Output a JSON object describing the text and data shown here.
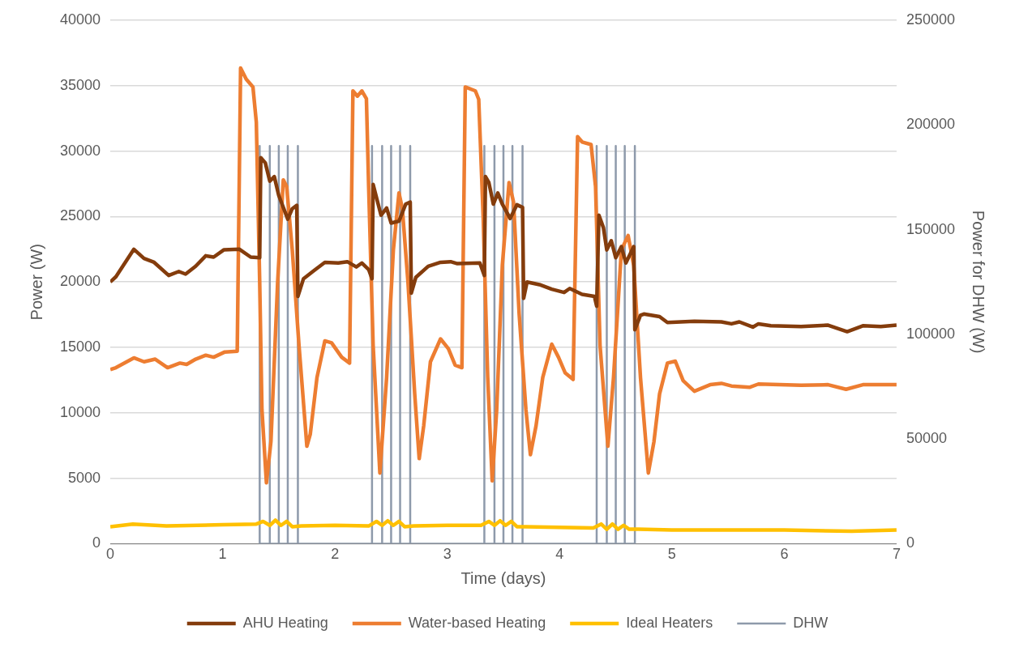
{
  "chart_data": {
    "type": "line",
    "xlabel": "Time (days)",
    "ylabel": "Power (W)",
    "y2label": "Power for DHW (W)",
    "xlim": [
      0,
      7
    ],
    "xticks": [
      0,
      1,
      2,
      3,
      4,
      5,
      6,
      7
    ],
    "ylim": [
      0,
      40000
    ],
    "yticks": [
      0,
      5000,
      10000,
      15000,
      20000,
      25000,
      30000,
      35000,
      40000
    ],
    "y2lim": [
      0,
      250000
    ],
    "y2ticks": [
      0,
      50000,
      100000,
      150000,
      200000,
      250000
    ],
    "grid": "y",
    "legend": "bottom",
    "series": [
      {
        "name": "AHU Heating",
        "color": "#843c0c",
        "x": [
          0,
          0.05,
          0.21,
          0.3,
          0.39,
          0.52,
          0.61,
          0.67,
          0.76,
          0.85,
          0.92,
          1.01,
          1.15,
          1.25,
          1.33,
          1.34,
          1.38,
          1.42,
          1.46,
          1.5,
          1.58,
          1.62,
          1.66,
          1.67,
          1.72,
          1.81,
          1.91,
          2.03,
          2.11,
          2.19,
          2.24,
          2.3,
          2.33,
          2.34,
          2.41,
          2.46,
          2.5,
          2.57,
          2.63,
          2.67,
          2.68,
          2.72,
          2.83,
          2.94,
          3.03,
          3.09,
          3.29,
          3.33,
          3.34,
          3.37,
          3.41,
          3.45,
          3.49,
          3.56,
          3.62,
          3.67,
          3.68,
          3.71,
          3.82,
          3.93,
          4.04,
          4.09,
          4.2,
          4.31,
          4.33,
          4.35,
          4.39,
          4.42,
          4.46,
          4.5,
          4.55,
          4.59,
          4.66,
          4.67,
          4.72,
          4.75,
          4.89,
          4.96,
          5.2,
          5.44,
          5.53,
          5.6,
          5.72,
          5.77,
          5.88,
          6.15,
          6.39,
          6.56,
          6.7,
          6.86,
          7
        ],
        "values": [
          20000,
          20400,
          22500,
          21800,
          21500,
          20500,
          20800,
          20600,
          21200,
          22000,
          21900,
          22450,
          22500,
          21900,
          21850,
          29500,
          29100,
          27700,
          28050,
          26600,
          24800,
          25600,
          25850,
          18900,
          20250,
          20850,
          21500,
          21450,
          21550,
          21150,
          21450,
          20950,
          20250,
          27450,
          25100,
          25650,
          24500,
          24650,
          25950,
          26100,
          19150,
          20350,
          21200,
          21500,
          21550,
          21400,
          21450,
          20500,
          28050,
          27600,
          25950,
          26800,
          25950,
          24850,
          25900,
          25700,
          18750,
          20000,
          19800,
          19450,
          19200,
          19500,
          19050,
          18900,
          18150,
          25100,
          24150,
          22450,
          23150,
          21850,
          22700,
          21450,
          22700,
          16350,
          17450,
          17550,
          17350,
          16900,
          17000,
          16950,
          16800,
          16950,
          16550,
          16800,
          16650,
          16600,
          16700,
          16200,
          16650,
          16600,
          16700
        ]
      },
      {
        "name": "Water-based Heating",
        "color": "#ed7d31",
        "x": [
          0,
          0.05,
          0.21,
          0.3,
          0.4,
          0.51,
          0.62,
          0.68,
          0.76,
          0.85,
          0.92,
          1.02,
          1.13,
          1.16,
          1.21,
          1.27,
          1.3,
          1.33,
          1.35,
          1.39,
          1.43,
          1.49,
          1.54,
          1.57,
          1.62,
          1.68,
          1.75,
          1.78,
          1.84,
          1.91,
          1.97,
          2.06,
          2.13,
          2.16,
          2.2,
          2.24,
          2.28,
          2.3,
          2.34,
          2.4,
          2.46,
          2.52,
          2.57,
          2.6,
          2.65,
          2.71,
          2.75,
          2.79,
          2.85,
          2.94,
          3.01,
          3.07,
          3.13,
          3.16,
          3.25,
          3.28,
          3.32,
          3.36,
          3.4,
          3.44,
          3.49,
          3.55,
          3.59,
          3.64,
          3.7,
          3.74,
          3.79,
          3.85,
          3.93,
          3.99,
          4.05,
          4.12,
          4.16,
          4.2,
          4.28,
          4.32,
          4.36,
          4.43,
          4.48,
          4.55,
          4.61,
          4.66,
          4.72,
          4.79,
          4.84,
          4.89,
          4.96,
          5.03,
          5.1,
          5.2,
          5.34,
          5.44,
          5.53,
          5.69,
          5.77,
          6.15,
          6.39,
          6.55,
          6.7,
          7
        ],
        "values": [
          13300,
          13450,
          14200,
          13900,
          14100,
          13450,
          13800,
          13700,
          14100,
          14400,
          14250,
          14650,
          14700,
          36350,
          35500,
          34900,
          32200,
          20000,
          10250,
          4650,
          7800,
          20000,
          27800,
          27300,
          22450,
          15150,
          7450,
          8350,
          12700,
          15500,
          15350,
          14250,
          13800,
          34600,
          34200,
          34600,
          34000,
          27300,
          15150,
          5400,
          12700,
          22450,
          26800,
          25600,
          20000,
          11450,
          6500,
          9000,
          13900,
          15650,
          14900,
          13650,
          13450,
          34900,
          34600,
          33950,
          24850,
          12700,
          4800,
          10250,
          21250,
          27600,
          26100,
          17550,
          10250,
          6800,
          9000,
          12700,
          15250,
          14250,
          13050,
          12550,
          31100,
          30700,
          30500,
          27300,
          15150,
          7450,
          12700,
          22450,
          23550,
          21250,
          12700,
          5400,
          7800,
          11450,
          13800,
          13950,
          12450,
          11650,
          12150,
          12250,
          12050,
          11950,
          12200,
          12100,
          12150,
          11800,
          12150,
          12150
        ]
      },
      {
        "name": "Ideal Heaters",
        "color": "#ffc000",
        "x": [
          0,
          0.2,
          0.5,
          1,
          1.3,
          1.36,
          1.42,
          1.47,
          1.52,
          1.57,
          1.62,
          1.7,
          2,
          2.3,
          2.37,
          2.42,
          2.47,
          2.52,
          2.57,
          2.62,
          2.7,
          3,
          3.3,
          3.37,
          3.42,
          3.47,
          3.52,
          3.57,
          3.62,
          3.7,
          4,
          4.3,
          4.37,
          4.42,
          4.47,
          4.52,
          4.57,
          4.62,
          4.7,
          5,
          6,
          6.6,
          7
        ],
        "values": [
          1300,
          1500,
          1350,
          1450,
          1500,
          1700,
          1400,
          1800,
          1400,
          1700,
          1300,
          1350,
          1400,
          1350,
          1700,
          1400,
          1750,
          1400,
          1700,
          1300,
          1350,
          1400,
          1400,
          1700,
          1400,
          1750,
          1400,
          1700,
          1300,
          1300,
          1250,
          1200,
          1500,
          1100,
          1500,
          1100,
          1400,
          1100,
          1100,
          1050,
          1050,
          950,
          1050
        ]
      },
      {
        "name": "DHW",
        "color": "#8e9aab",
        "axis": "y2",
        "x": [
          1.33,
          1.33,
          1.33,
          1.42,
          1.42,
          1.42,
          1.5,
          1.5,
          1.5,
          1.58,
          1.58,
          1.58,
          1.67,
          1.67,
          1.67,
          2.33,
          2.33,
          2.33,
          2.42,
          2.42,
          2.42,
          2.5,
          2.5,
          2.5,
          2.58,
          2.58,
          2.58,
          2.67,
          2.67,
          2.67,
          3.33,
          3.33,
          3.33,
          3.42,
          3.42,
          3.42,
          3.5,
          3.5,
          3.5,
          3.58,
          3.58,
          3.58,
          3.67,
          3.67,
          3.67,
          4.33,
          4.33,
          4.33,
          4.42,
          4.42,
          4.42,
          4.5,
          4.5,
          4.5,
          4.58,
          4.58,
          4.58,
          4.67,
          4.67,
          4.67
        ],
        "values": [
          0,
          190000,
          0,
          0,
          190000,
          0,
          0,
          190000,
          0,
          0,
          190000,
          0,
          0,
          190000,
          0,
          0,
          190000,
          0,
          0,
          190000,
          0,
          0,
          190000,
          0,
          0,
          190000,
          0,
          0,
          190000,
          0,
          0,
          190000,
          0,
          0,
          190000,
          0,
          0,
          190000,
          0,
          0,
          190000,
          0,
          0,
          190000,
          0,
          0,
          190000,
          0,
          0,
          190000,
          0,
          0,
          190000,
          0,
          0,
          190000,
          0,
          0,
          190000,
          0
        ]
      }
    ]
  }
}
